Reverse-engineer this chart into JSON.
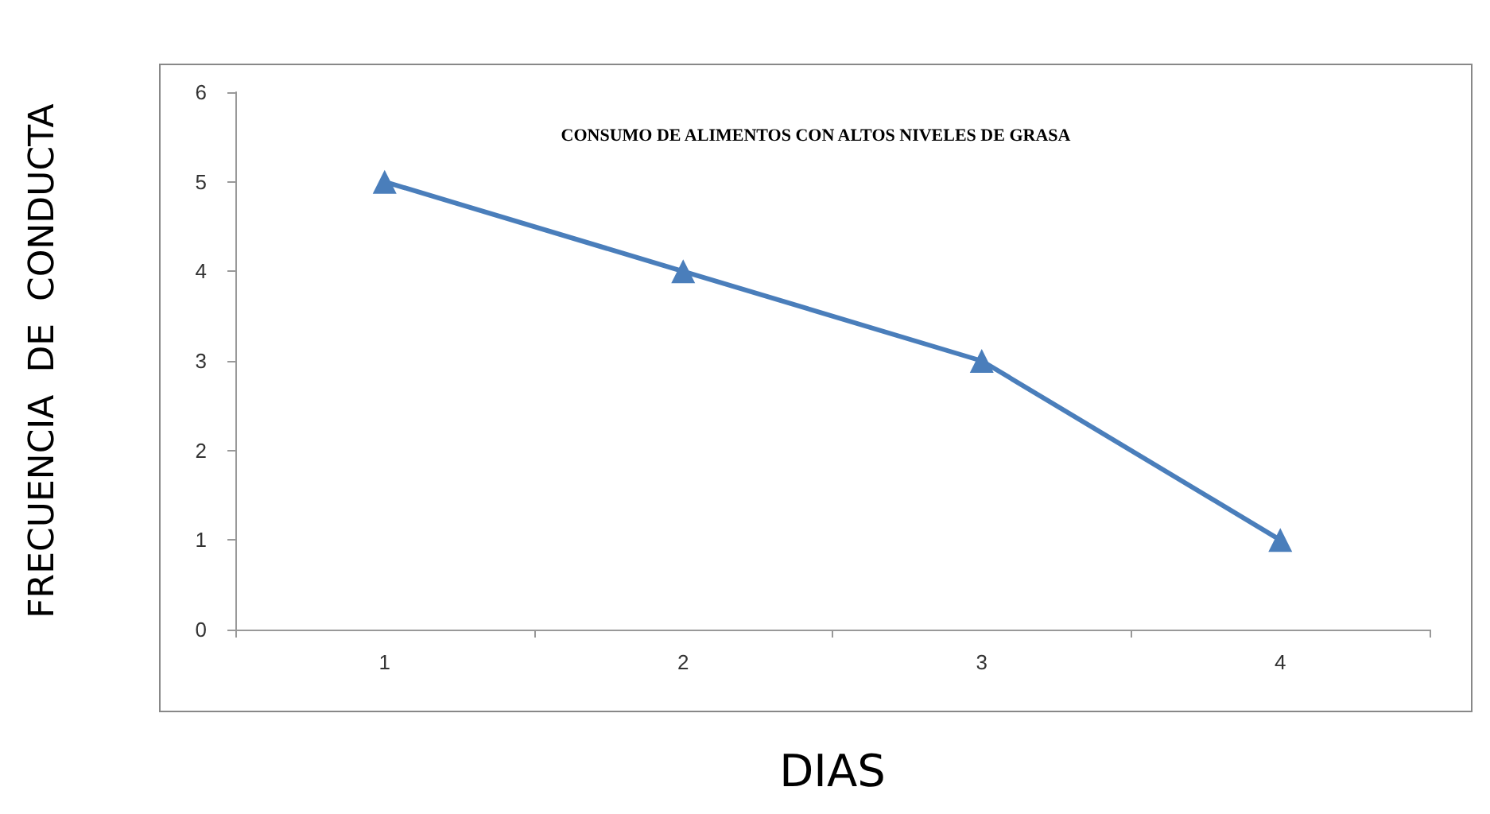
{
  "chart_data": {
    "type": "line",
    "title": "CONSUMO DE ALIMENTOS CON ALTOS NIVELES DE GRASA",
    "xlabel": "DIAS",
    "ylabel": "FRECUENCIA  DE  CONDUCTA",
    "categories": [
      "1",
      "2",
      "3",
      "4"
    ],
    "series": [
      {
        "color": "#4a7ebb",
        "values": [
          5,
          4,
          3,
          1
        ]
      }
    ],
    "ylim": [
      0,
      6
    ],
    "yticks": [
      0,
      1,
      2,
      3,
      4,
      5,
      6
    ],
    "grid": false,
    "marker": "triangle",
    "line_style": "solid"
  }
}
